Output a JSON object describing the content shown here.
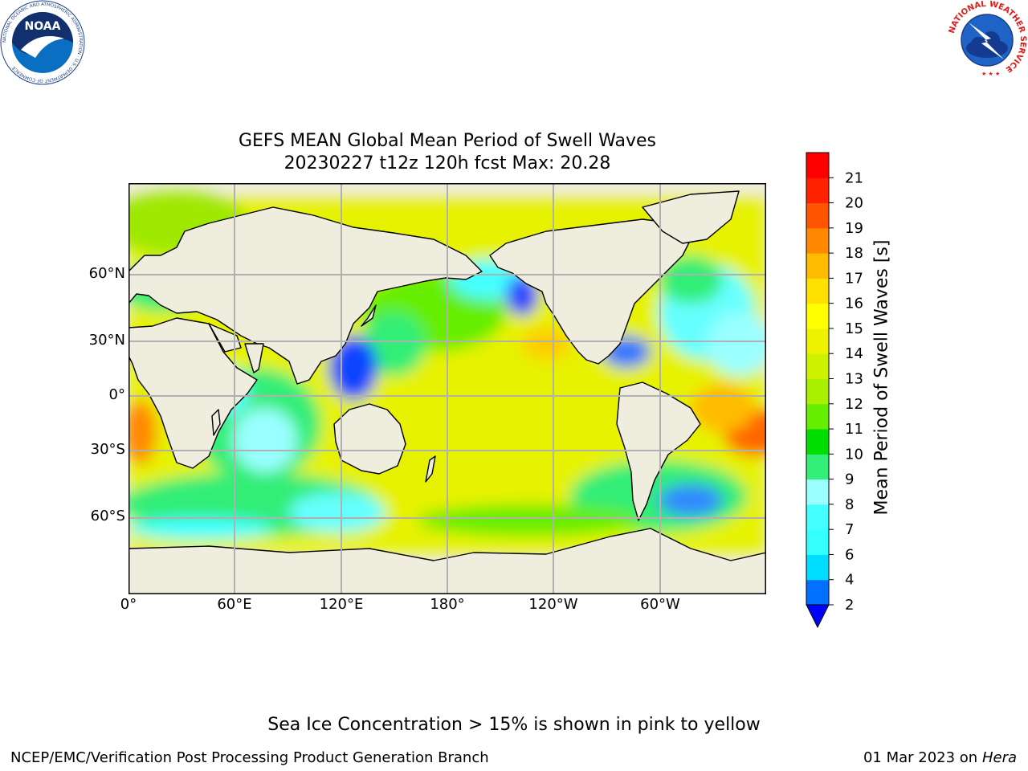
{
  "title": {
    "line1": "GEFS MEAN Global Mean Period of Swell Waves",
    "line2": "20230227 t12z 120h fcst   Max: 20.28"
  },
  "map": {
    "lon_labels": [
      "0°",
      "60°E",
      "120°E",
      "180°",
      "120°W",
      "60°W"
    ],
    "lat_labels": [
      "60°N",
      "30°N",
      "0°",
      "30°S",
      "60°S"
    ],
    "land_color": "#efedde",
    "gridline_color": "#b0b0b0"
  },
  "colorbar": {
    "label": "Mean Period of Swell Waves [s]",
    "ticks": [
      "2",
      "4",
      "6",
      "7",
      "8",
      "9",
      "10",
      "11",
      "12",
      "13",
      "14",
      "15",
      "16",
      "17",
      "18",
      "19",
      "20",
      "21"
    ],
    "colors": [
      "#0070ff",
      "#00ddff",
      "#33ffff",
      "#44ffff",
      "#99ffff",
      "#33ee77",
      "#00dd00",
      "#66ee00",
      "#aaee00",
      "#ccf200",
      "#eef200",
      "#ffff00",
      "#ffe000",
      "#ffbb00",
      "#ff8800",
      "#ff5500",
      "#ff2200",
      "#ff0000"
    ],
    "underflow_color": "#0000ff"
  },
  "footer": {
    "ice_note": "Sea Ice Concentration > 15% is shown in pink to yellow",
    "left": "NCEP/EMC/Verification Post Processing Product Generation Branch",
    "date": "01 Mar 2023 on",
    "host": "Hera"
  },
  "logos": {
    "noaa": {
      "text": "NOAA",
      "ring_text": "NATIONAL OCEANIC AND ATMOSPHERIC ADMINISTRATION · U.S. DEPARTMENT OF COMMERCE"
    },
    "nws": {
      "ring_text": "NATIONAL WEATHER SERVICE"
    }
  }
}
